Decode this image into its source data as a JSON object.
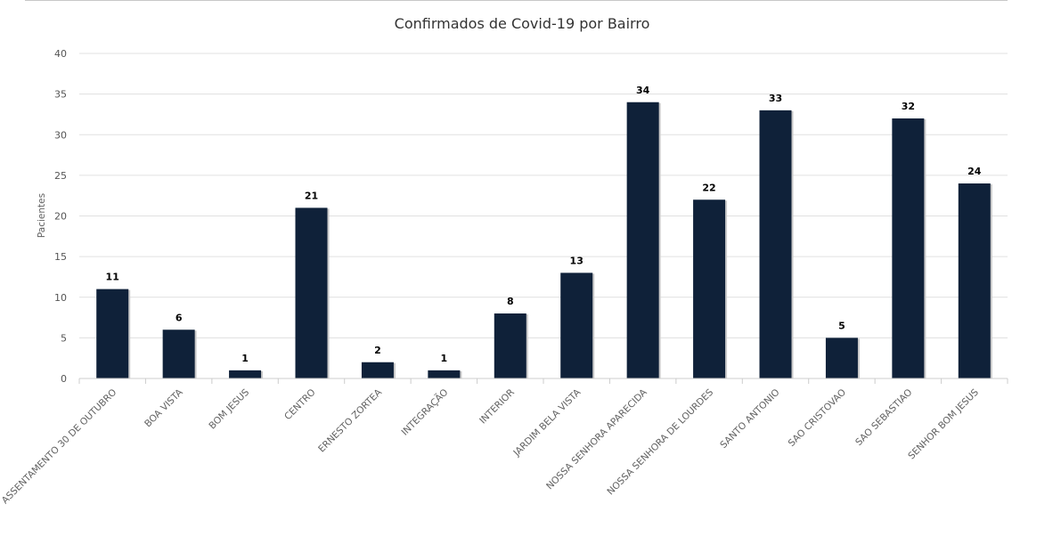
{
  "chart_data": {
    "type": "bar",
    "title": "Confirmados de Covid-19 por Bairro",
    "ylabel": "Pacientes",
    "xlabel": "",
    "ylim": [
      0,
      40
    ],
    "yticks": [
      0,
      5,
      10,
      15,
      20,
      25,
      30,
      35,
      40
    ],
    "grid": true,
    "data_labels": true,
    "bar_color": "#0f2139",
    "categories": [
      "ASSENTAMENTO 30 DE OUTUBRO",
      "BOA VISTA",
      "BOM JESUS",
      "CENTRO",
      "ERNESTO ZORTEA",
      "INTEGRAÇÃO",
      "INTERIOR",
      "JARDIM BELA VISTA",
      "NOSSA SENHORA APARECIDA",
      "NOSSA SENHORA DE LOURDES",
      "SANTO ANTONIO",
      "SAO CRISTOVAO",
      "SAO SEBASTIAO",
      "SENHOR BOM JESUS"
    ],
    "values": [
      11,
      6,
      1,
      21,
      2,
      1,
      8,
      13,
      34,
      22,
      33,
      5,
      32,
      24
    ]
  }
}
